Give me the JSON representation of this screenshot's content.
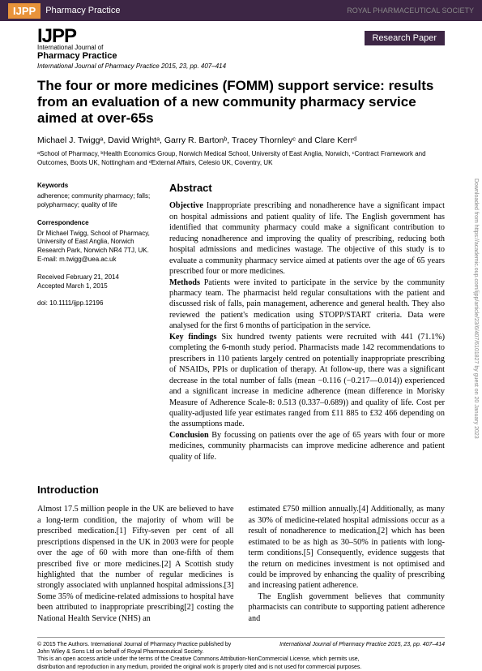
{
  "header": {
    "badge": "IJPP",
    "label": "Pharmacy Practice",
    "publisher": "ROYAL PHARMACEUTICAL SOCIETY"
  },
  "journal": {
    "logo_top": "IJPP",
    "sub1": "International Journal of",
    "sub2": "Pharmacy Practice",
    "citation": "International Journal of Pharmacy Practice 2015, 23, pp. 407–414",
    "type": "Research Paper"
  },
  "title": "The four or more medicines (FOMM) support service: results from an evaluation of a new community pharmacy service aimed at over-65s",
  "authors": "Michael J. Twiggᵃ, David Wrightᵃ, Garry R. Bartonᵇ, Tracey Thornleyᶜ and Clare Kerrᵈ",
  "affil": "ᵃSchool of Pharmacy, ᵇHealth Economics Group, Norwich Medical School, University of East Anglia, Norwich, ᶜContract Framework and Outcomes, Boots UK, Nottingham and ᵈExternal Affairs, Celesio UK, Coventry, UK",
  "sidebar": {
    "keywords_h": "Keywords",
    "keywords": "adherence; community pharmacy; falls; polypharmacy; quality of life",
    "corr_h": "Correspondence",
    "corr": "Dr Michael Twigg, School of Pharmacy, University of East Anglia, Norwich Research Park, Norwich NR4 7TJ, UK.",
    "email": "E-mail: m.twigg@uea.ac.uk",
    "received": "Received February 21, 2014",
    "accepted": "Accepted March 1, 2015",
    "doi": "doi: 10.1111/ijpp.12196"
  },
  "abstract": {
    "head": "Abstract",
    "obj_h": "Objective",
    "obj": " Inappropriate prescribing and nonadherence have a significant impact on hospital admissions and patient quality of life. The English government has identified that community pharmacy could make a significant contribution to reducing nonadherence and improving the quality of prescribing, reducing both hospital admissions and medicines wastage. The objective of this study is to evaluate a community pharmacy service aimed at patients over the age of 65 years prescribed four or more medicines.",
    "meth_h": "Methods",
    "meth": " Patients were invited to participate in the service by the community pharmacy team. The pharmacist held regular consultations with the patient and discussed risk of falls, pain management, adherence and general health. They also reviewed the patient's medication using STOPP/START criteria. Data were analysed for the first 6 months of participation in the service.",
    "key_h": "Key findings",
    "key": " Six hundred twenty patients were recruited with 441 (71.1%) completing the 6-month study period. Pharmacists made 142 recommendations to prescribers in 110 patients largely centred on potentially inappropriate prescribing of NSAIDs, PPIs or duplication of therapy. At follow-up, there was a significant decrease in the total number of falls (mean −0.116 (−0.217—0.014)) experienced and a significant increase in medicine adherence (mean difference in Morisky Measure of Adherence Scale-8: 0.513 (0.337–0.689)) and quality of life. Cost per quality-adjusted life year estimates ranged from £11 885 to £32 466 depending on the assumptions made.",
    "conc_h": "Conclusion",
    "conc": " By focussing on patients over the age of 65 years with four or more medicines, community pharmacists can improve medicine adherence and patient quality of life."
  },
  "intro": {
    "head": "Introduction",
    "col1": "Almost 17.5 million people in the UK are believed to have a long-term condition, the majority of whom will be prescribed medication.[1] Fifty-seven per cent of all prescriptions dispensed in the UK in 2003 were for people over the age of 60 with more than one-fifth of them prescribed five or more medicines.[2] A Scottish study highlighted that the number of regular medicines is strongly associated with unplanned hospital admissions.[3] Some 35% of medicine-related admissions to hospital have been attributed to inappropriate prescribing[2] costing the National Health Service (NHS) an",
    "col2": "estimated £750 million annually.[4] Additionally, as many as 30% of medicine-related hospital admissions occur as a result of nonadherence to medication,[2] which has been estimated to be as high as 30–50% in patients with long-term conditions.[5] Consequently, evidence suggests that the return on medicines investment is not optimised and could be improved by enhancing the quality of prescribing and increasing patient adherence.",
    "col2b": "The English government believes that community pharmacists can contribute to supporting patient adherence and"
  },
  "footer": {
    "left1": "© 2015 The Authors. International Journal of Pharmacy Practice published by",
    "left2": "John Wiley & Sons Ltd on behalf of Royal Pharmaceutical Society.",
    "left3": "This is an open access article under the terms of the Creative Commons Attribution-NonCommercial License, which permits use,",
    "left4": "distribution and reproduction in any medium, provided the original work is properly cited and is not used for commercial purposes.",
    "right": "International Journal of Pharmacy Practice 2015, 23, pp. 407–414"
  },
  "side": "Downloaded from https://academic.oup.com/ijpp/article/23/6/407/6101827 by guest on 20 January 2023"
}
